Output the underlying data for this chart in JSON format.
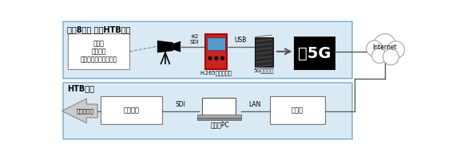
{
  "bg_color": "#ffffff",
  "box_color": "#daeaf5",
  "box_border": "#8ab4cc",
  "black": "#000000",
  "gray": "#555555",
  "line_color": "#666666",
  "top_label": "大通8丁目 雪のHTB広場",
  "bottom_label": "HTB本社",
  "camera_text": "大雪像\nウポポイ\n（民族共生象徴空間）",
  "encoder_label": "H.265エンコーダ",
  "modem_label": "5Gプレ端末",
  "fiveg_text": "》5G",
  "internet_text": "Internet",
  "sdi_top": "※2\nSDI",
  "usb_text": "USB",
  "hosou_label": "放送設備",
  "sdi_bottom": "SDI",
  "pc_label": "受信用PC",
  "lan_text": "LAN",
  "fiber_label": "光回線",
  "broadcast_label": "地上波放送"
}
